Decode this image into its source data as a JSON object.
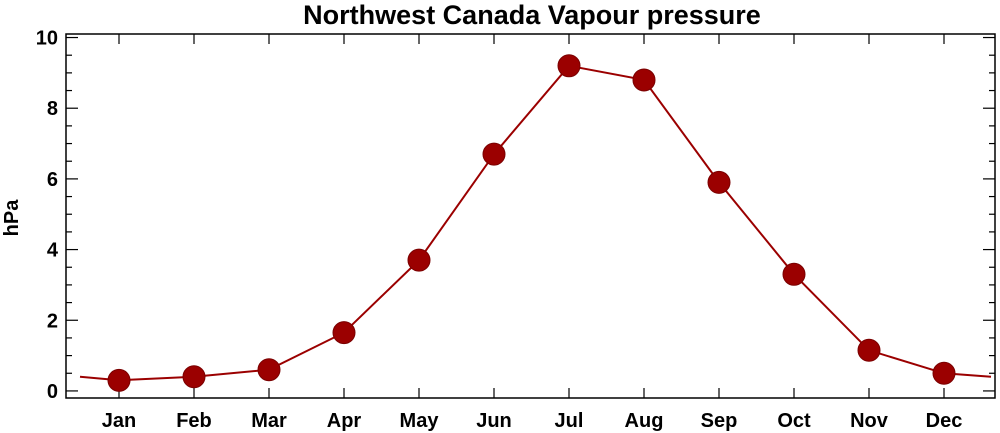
{
  "chart_data": {
    "type": "line",
    "title": "Northwest Canada Vapour pressure",
    "xlabel": "",
    "ylabel": "hPa",
    "categories": [
      "Jan",
      "Feb",
      "Mar",
      "Apr",
      "May",
      "Jun",
      "Jul",
      "Aug",
      "Sep",
      "Oct",
      "Nov",
      "Dec"
    ],
    "y_ticks": [
      0,
      2,
      4,
      6,
      8,
      10
    ],
    "ylim": [
      -0.2,
      10.1
    ],
    "series": [
      {
        "values": [
          0.3,
          0.4,
          0.6,
          1.65,
          3.7,
          6.7,
          9.2,
          8.8,
          5.9,
          3.3,
          1.15,
          0.5
        ],
        "line_start": 0.4,
        "line_end": 0.4
      }
    ],
    "grid": false,
    "legend": "none",
    "color": "#9b0000"
  }
}
